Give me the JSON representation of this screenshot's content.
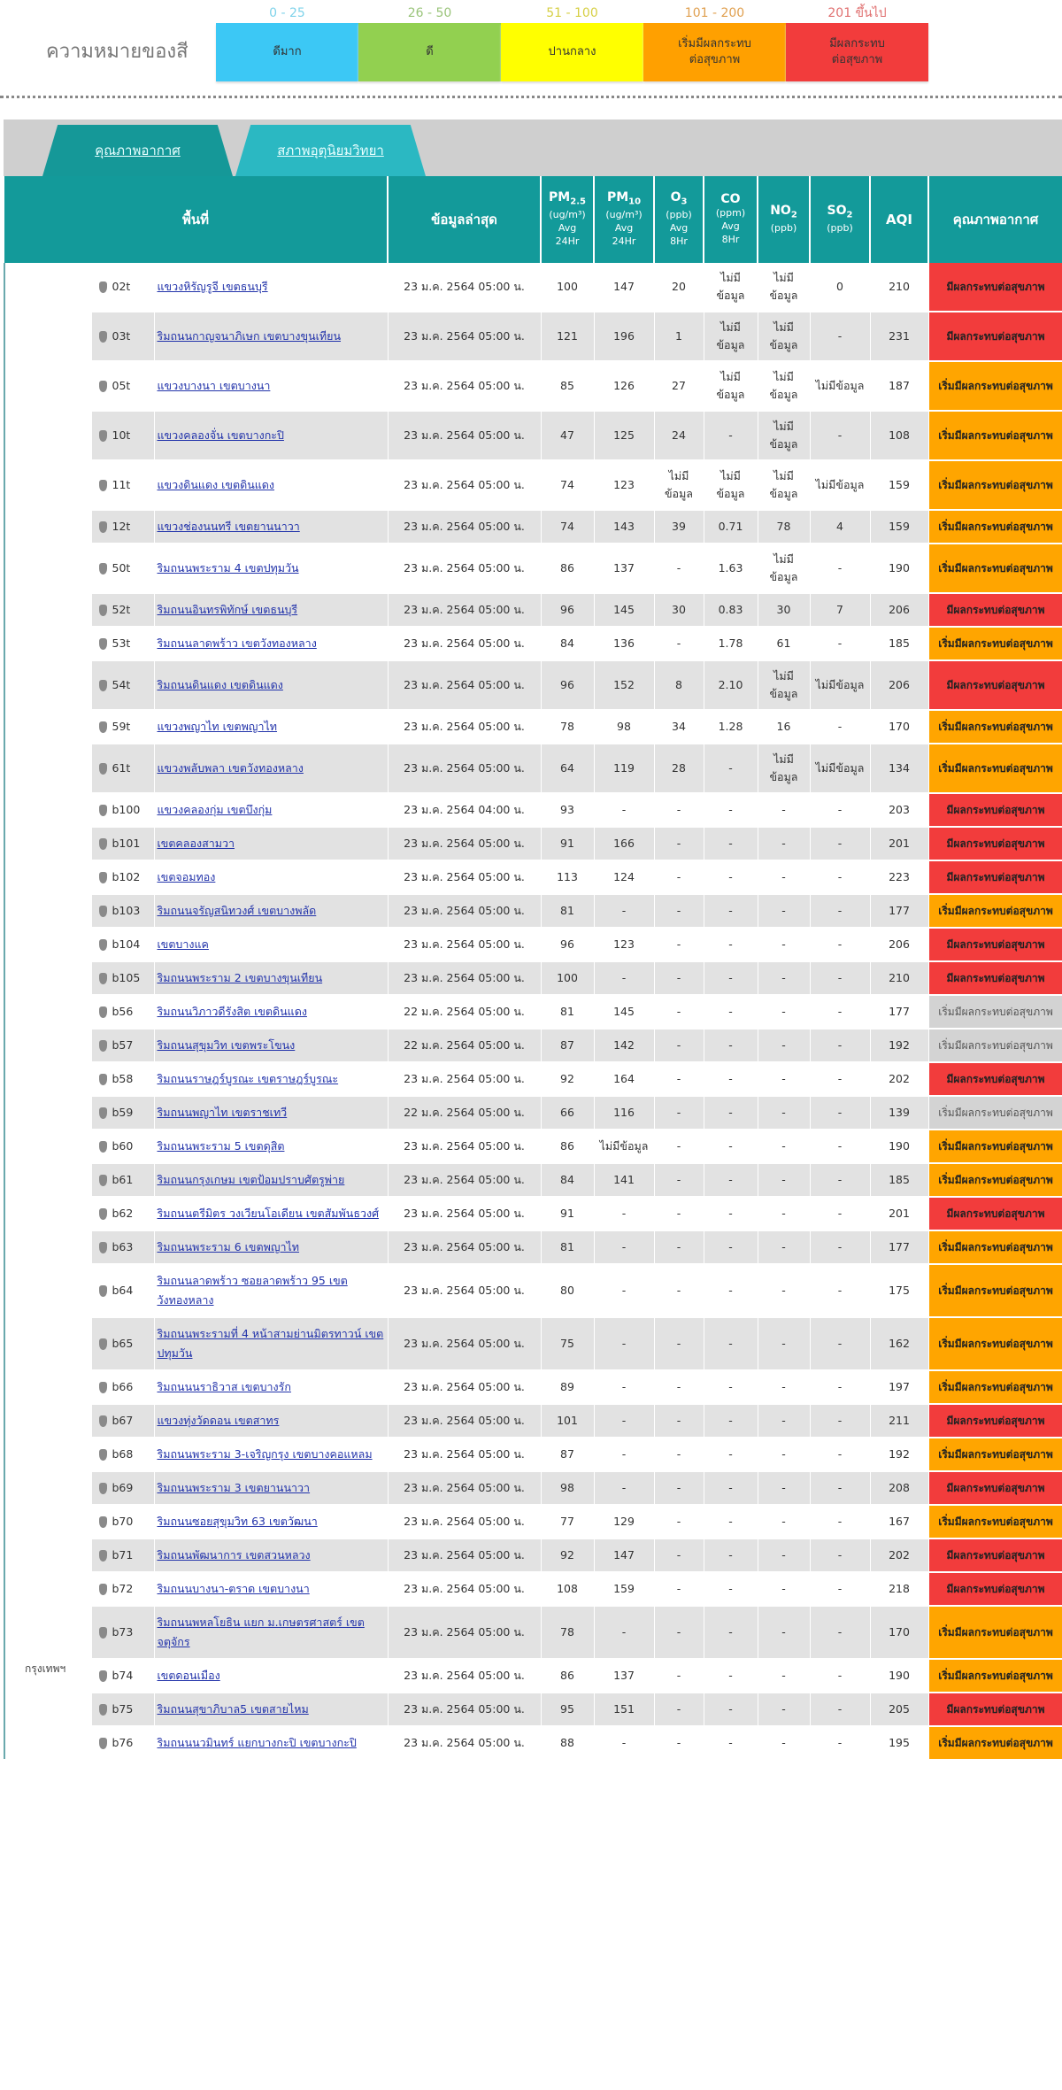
{
  "legend": {
    "title": "ความหมายของสี",
    "items": [
      {
        "range": "0 - 25",
        "label": "ดีมาก",
        "color": "#3cc8f5",
        "range_color": "#7fd3ea"
      },
      {
        "range": "26 - 50",
        "label": "ดี",
        "color": "#92d050",
        "range_color": "#9ac47a"
      },
      {
        "range": "51 - 100",
        "label": "ปานกลาง",
        "color": "#ffff00",
        "range_color": "#d6cf44"
      },
      {
        "range": "101 - 200",
        "label": "เริ่มมีผลกระทบ\nต่อสุขภาพ",
        "color": "#ffa000",
        "range_color": "#e0a050"
      },
      {
        "range": "201 ขึ้นไป",
        "label": "มีผลกระทบ\nต่อสุขภาพ",
        "color": "#f23c3c",
        "range_color": "#e07070"
      }
    ]
  },
  "tabs": [
    {
      "label": "คุณภาพอากาศ",
      "active": true
    },
    {
      "label": "สภาพอุตุนิยมวิทยา",
      "active": false
    }
  ],
  "headers": {
    "area": "พื้นที่",
    "latest": "ข้อมูลล่าสุด",
    "pm25": {
      "name": "PM",
      "sub": "2.5",
      "unit": "(ug/m³)",
      "avg": "Avg",
      "period": "24Hr"
    },
    "pm10": {
      "name": "PM",
      "sub": "10",
      "unit": "(ug/m³)",
      "avg": "Avg",
      "period": "24Hr"
    },
    "o3": {
      "name": "O",
      "sub": "3",
      "unit": "(ppb)",
      "avg": "Avg",
      "period": "8Hr"
    },
    "co": {
      "name": "CO",
      "sub": "",
      "unit": "(ppm)",
      "avg": "Avg",
      "period": "8Hr"
    },
    "no2": {
      "name": "NO",
      "sub": "2",
      "unit": "(ppb)"
    },
    "so2": {
      "name": "SO",
      "sub": "2",
      "unit": "(ppb)"
    },
    "aqi": "AQI",
    "quality": "คุณภาพอากาศ"
  },
  "region": "กรุงเทพฯ",
  "status_colors": {
    "red": "#f23c3c",
    "orange": "#ffa500",
    "gray": "#d3d3d3"
  },
  "status_labels": {
    "red": "มีผลกระทบต่อสุขภาพ",
    "orange": "เริ่มมีผลกระทบต่อสุขภาพ",
    "gray": "เริ่มมีผลกระทบต่อสุขภาพ"
  },
  "no_data": "ไม่มีข้อมูล",
  "rows": [
    [
      "02t",
      "แขวงหิรัญรูจี เขตธนบุรี",
      "23 ม.ค. 2564 05:00 น.",
      "100",
      "147",
      "20",
      "ND",
      "ND",
      "0",
      "210",
      "red"
    ],
    [
      "03t",
      "ริมถนนกาญจนาภิเษก เขตบางขุนเทียน",
      "23 ม.ค. 2564 05:00 น.",
      "121",
      "196",
      "1",
      "ND",
      "ND",
      "-",
      "231",
      "red"
    ],
    [
      "05t",
      "แขวงบางนา เขตบางนา",
      "23 ม.ค. 2564 05:00 น.",
      "85",
      "126",
      "27",
      "ND",
      "ND",
      "ND",
      "187",
      "orange"
    ],
    [
      "10t",
      "แขวงคลองจั่น เขตบางกะปิ",
      "23 ม.ค. 2564 05:00 น.",
      "47",
      "125",
      "24",
      "-",
      "ND",
      "-",
      "108",
      "orange"
    ],
    [
      "11t",
      "แขวงดินแดง เขตดินแดง",
      "23 ม.ค. 2564 05:00 น.",
      "74",
      "123",
      "ND",
      "ND",
      "ND",
      "ND",
      "159",
      "orange"
    ],
    [
      "12t",
      "แขวงช่องนนทรี เขตยานนาวา",
      "23 ม.ค. 2564 05:00 น.",
      "74",
      "143",
      "39",
      "0.71",
      "78",
      "4",
      "159",
      "orange"
    ],
    [
      "50t",
      "ริมถนนพระราม 4 เขตปทุมวัน",
      "23 ม.ค. 2564 05:00 น.",
      "86",
      "137",
      "-",
      "1.63",
      "ND",
      "-",
      "190",
      "orange"
    ],
    [
      "52t",
      "ริมถนนอินทรพิทักษ์ เขตธนบุรี",
      "23 ม.ค. 2564 05:00 น.",
      "96",
      "145",
      "30",
      "0.83",
      "30",
      "7",
      "206",
      "red"
    ],
    [
      "53t",
      "ริมถนนลาดพร้าว เขตวังทองหลาง",
      "23 ม.ค. 2564 05:00 น.",
      "84",
      "136",
      "-",
      "1.78",
      "61",
      "-",
      "185",
      "orange"
    ],
    [
      "54t",
      "ริมถนนดินแดง เขตดินแดง",
      "23 ม.ค. 2564 05:00 น.",
      "96",
      "152",
      "8",
      "2.10",
      "ND",
      "ND",
      "206",
      "red"
    ],
    [
      "59t",
      "แขวงพญาไท เขตพญาไท",
      "23 ม.ค. 2564 05:00 น.",
      "78",
      "98",
      "34",
      "1.28",
      "16",
      "-",
      "170",
      "orange"
    ],
    [
      "61t",
      "แขวงพลับพลา เขตวังทองหลาง",
      "23 ม.ค. 2564 05:00 น.",
      "64",
      "119",
      "28",
      "-",
      "ND",
      "ND",
      "134",
      "orange"
    ],
    [
      "b100",
      "แขวงคลองกุ่ม เขตบึงกุ่ม",
      "23 ม.ค. 2564 04:00 น.",
      "93",
      "-",
      "-",
      "-",
      "-",
      "-",
      "203",
      "red"
    ],
    [
      "b101",
      "เขตคลองสามวา",
      "23 ม.ค. 2564 05:00 น.",
      "91",
      "166",
      "-",
      "-",
      "-",
      "-",
      "201",
      "red"
    ],
    [
      "b102",
      "เขตจอมทอง",
      "23 ม.ค. 2564 05:00 น.",
      "113",
      "124",
      "-",
      "-",
      "-",
      "-",
      "223",
      "red"
    ],
    [
      "b103",
      "ริมถนนจรัญสนิทวงศ์ เขตบางพลัด",
      "23 ม.ค. 2564 05:00 น.",
      "81",
      "-",
      "-",
      "-",
      "-",
      "-",
      "177",
      "orange"
    ],
    [
      "b104",
      "เขตบางแค",
      "23 ม.ค. 2564 05:00 น.",
      "96",
      "123",
      "-",
      "-",
      "-",
      "-",
      "206",
      "red"
    ],
    [
      "b105",
      "ริมถนนพระราม 2 เขตบางขุนเทียน",
      "23 ม.ค. 2564 05:00 น.",
      "100",
      "-",
      "-",
      "-",
      "-",
      "-",
      "210",
      "red"
    ],
    [
      "b56",
      "ริมถนนวิภาวดีรังสิต เขตดินแดง",
      "22 ม.ค. 2564 05:00 น.",
      "81",
      "145",
      "-",
      "-",
      "-",
      "-",
      "177",
      "gray"
    ],
    [
      "b57",
      "ริมถนนสุขุมวิท เขตพระโขนง",
      "22 ม.ค. 2564 05:00 น.",
      "87",
      "142",
      "-",
      "-",
      "-",
      "-",
      "192",
      "gray"
    ],
    [
      "b58",
      "ริมถนนราษฎร์บูรณะ เขตราษฎร์บูรณะ",
      "23 ม.ค. 2564 05:00 น.",
      "92",
      "164",
      "-",
      "-",
      "-",
      "-",
      "202",
      "red"
    ],
    [
      "b59",
      "ริมถนนพญาไท เขตราชเทวี",
      "22 ม.ค. 2564 05:00 น.",
      "66",
      "116",
      "-",
      "-",
      "-",
      "-",
      "139",
      "gray"
    ],
    [
      "b60",
      "ริมถนนพระราม 5 เขตดุสิต",
      "23 ม.ค. 2564 05:00 น.",
      "86",
      "ND",
      "-",
      "-",
      "-",
      "-",
      "190",
      "orange"
    ],
    [
      "b61",
      "ริมถนนกรุงเกษม เขตป้อมปราบศัตรูพ่าย",
      "23 ม.ค. 2564 05:00 น.",
      "84",
      "141",
      "-",
      "-",
      "-",
      "-",
      "185",
      "orange"
    ],
    [
      "b62",
      "ริมถนนตรีมิตร วงเวียนโอเดียน เขตสัมพันธวงศ์",
      "23 ม.ค. 2564 05:00 น.",
      "91",
      "-",
      "-",
      "-",
      "-",
      "-",
      "201",
      "red"
    ],
    [
      "b63",
      "ริมถนนพระราม 6 เขตพญาไท",
      "23 ม.ค. 2564 05:00 น.",
      "81",
      "-",
      "-",
      "-",
      "-",
      "-",
      "177",
      "orange"
    ],
    [
      "b64",
      "ริมถนนลาดพร้าว ซอยลาดพร้าว 95 เขตวังทองหลาง",
      "23 ม.ค. 2564 05:00 น.",
      "80",
      "-",
      "-",
      "-",
      "-",
      "-",
      "175",
      "orange"
    ],
    [
      "b65",
      "ริมถนนพระรามที่ 4 หน้าสามย่านมิตรทาวน์ เขตปทุมวัน",
      "23 ม.ค. 2564 05:00 น.",
      "75",
      "-",
      "-",
      "-",
      "-",
      "-",
      "162",
      "orange"
    ],
    [
      "b66",
      "ริมถนนนราธิวาส เขตบางรัก",
      "23 ม.ค. 2564 05:00 น.",
      "89",
      "-",
      "-",
      "-",
      "-",
      "-",
      "197",
      "orange"
    ],
    [
      "b67",
      "แขวงทุ่งวัดดอน เขตสาทร",
      "23 ม.ค. 2564 05:00 น.",
      "101",
      "-",
      "-",
      "-",
      "-",
      "-",
      "211",
      "red"
    ],
    [
      "b68",
      "ริมถนนพระราม 3-เจริญกรุง เขตบางคอแหลม",
      "23 ม.ค. 2564 05:00 น.",
      "87",
      "-",
      "-",
      "-",
      "-",
      "-",
      "192",
      "orange"
    ],
    [
      "b69",
      "ริมถนนพระราม 3 เขตยานนาวา",
      "23 ม.ค. 2564 05:00 น.",
      "98",
      "-",
      "-",
      "-",
      "-",
      "-",
      "208",
      "red"
    ],
    [
      "b70",
      "ริมถนนซอยสุขุมวิท 63 เขตวัฒนา",
      "23 ม.ค. 2564 05:00 น.",
      "77",
      "129",
      "-",
      "-",
      "-",
      "-",
      "167",
      "orange"
    ],
    [
      "b71",
      "ริมถนนพัฒนาการ เขตสวนหลวง",
      "23 ม.ค. 2564 05:00 น.",
      "92",
      "147",
      "-",
      "-",
      "-",
      "-",
      "202",
      "red"
    ],
    [
      "b72",
      "ริมถนนบางนา-ตราด เขตบางนา",
      "23 ม.ค. 2564 05:00 น.",
      "108",
      "159",
      "-",
      "-",
      "-",
      "-",
      "218",
      "red"
    ],
    [
      "b73",
      "ริมถนนพหลโยธิน แยก ม.เกษตรศาสตร์ เขตจตุจักร",
      "23 ม.ค. 2564 05:00 น.",
      "78",
      "-",
      "-",
      "-",
      "-",
      "-",
      "170",
      "orange"
    ],
    [
      "b74",
      "เขตดอนเมือง",
      "23 ม.ค. 2564 05:00 น.",
      "86",
      "137",
      "-",
      "-",
      "-",
      "-",
      "190",
      "orange"
    ],
    [
      "b75",
      "ริมถนนสุขาภิบาล5 เขตสายไหม",
      "23 ม.ค. 2564 05:00 น.",
      "95",
      "151",
      "-",
      "-",
      "-",
      "-",
      "205",
      "red"
    ],
    [
      "b76",
      "ริมถนนนวมินทร์ แยกบางกะปิ เขตบางกะปิ",
      "23 ม.ค. 2564 05:00 น.",
      "88",
      "-",
      "-",
      "-",
      "-",
      "-",
      "195",
      "orange"
    ]
  ]
}
